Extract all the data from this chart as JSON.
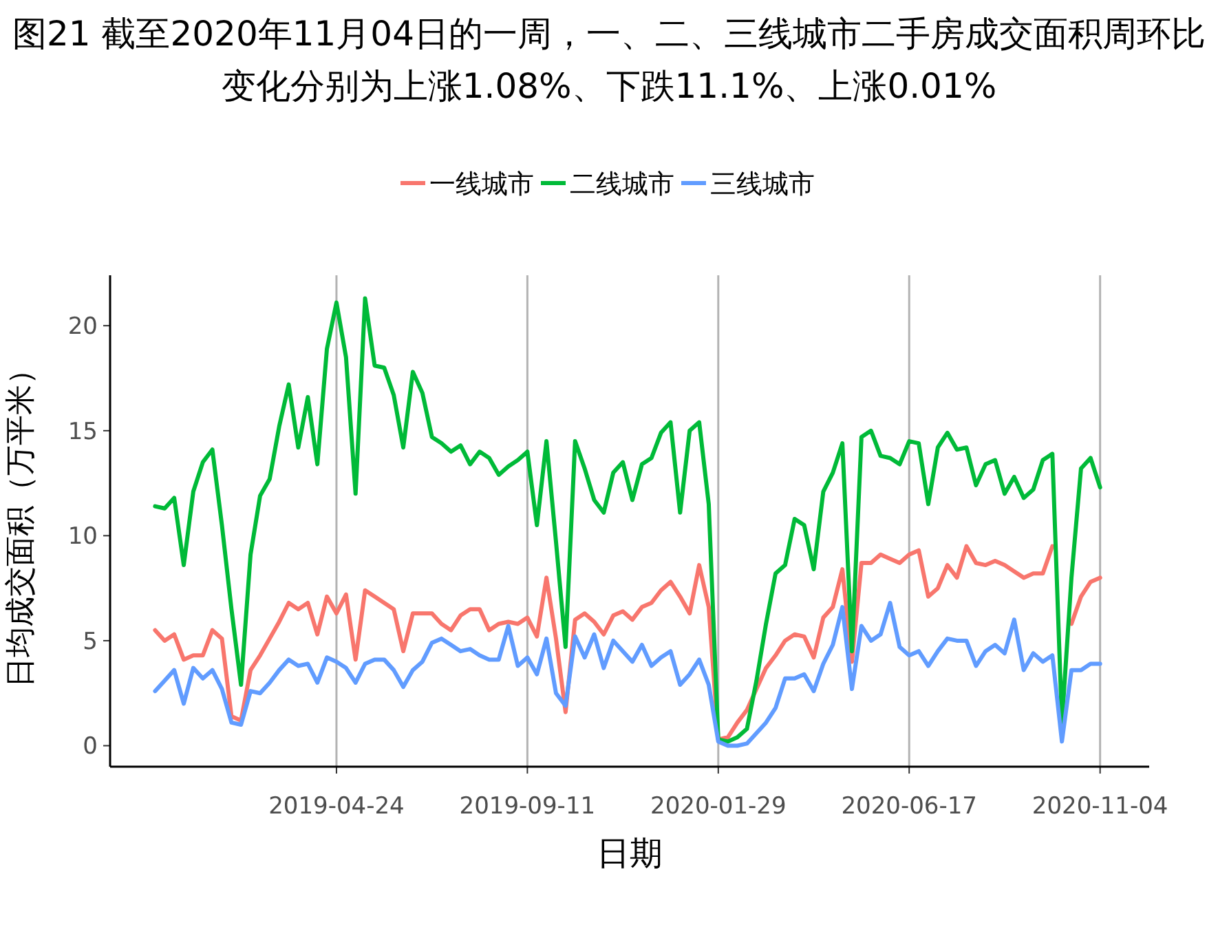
{
  "chart_data": {
    "type": "line",
    "title": "图21  截至2020年11月04日的一周，一、二、三线城市二手房成交面积周环比变化分别为上涨1.08%、下跌11.1%、上涨0.01%",
    "xlabel": "日期",
    "ylabel": "日均成交面积（万平米）",
    "x": [
      "2018-12-12",
      "2018-12-19",
      "2018-12-26",
      "2019-01-02",
      "2019-01-09",
      "2019-01-16",
      "2019-01-23",
      "2019-01-30",
      "2019-02-06",
      "2019-02-13",
      "2019-02-20",
      "2019-02-27",
      "2019-03-06",
      "2019-03-13",
      "2019-03-20",
      "2019-03-27",
      "2019-04-03",
      "2019-04-10",
      "2019-04-17",
      "2019-04-24",
      "2019-05-01",
      "2019-05-08",
      "2019-05-15",
      "2019-05-22",
      "2019-05-29",
      "2019-06-05",
      "2019-06-12",
      "2019-06-19",
      "2019-06-26",
      "2019-07-03",
      "2019-07-10",
      "2019-07-17",
      "2019-07-24",
      "2019-07-31",
      "2019-08-07",
      "2019-08-14",
      "2019-08-21",
      "2019-08-28",
      "2019-09-04",
      "2019-09-11",
      "2019-09-18",
      "2019-09-25",
      "2019-10-02",
      "2019-10-09",
      "2019-10-16",
      "2019-10-23",
      "2019-10-30",
      "2019-11-06",
      "2019-11-13",
      "2019-11-20",
      "2019-11-27",
      "2019-12-04",
      "2019-12-11",
      "2019-12-18",
      "2019-12-25",
      "2020-01-01",
      "2020-01-08",
      "2020-01-15",
      "2020-01-22",
      "2020-01-29",
      "2020-02-05",
      "2020-02-12",
      "2020-02-19",
      "2020-02-26",
      "2020-03-04",
      "2020-03-11",
      "2020-03-18",
      "2020-03-25",
      "2020-04-01",
      "2020-04-08",
      "2020-04-15",
      "2020-04-22",
      "2020-04-29",
      "2020-05-06",
      "2020-05-13",
      "2020-05-20",
      "2020-05-27",
      "2020-06-03",
      "2020-06-10",
      "2020-06-17",
      "2020-06-24",
      "2020-07-01",
      "2020-07-08",
      "2020-07-15",
      "2020-07-22",
      "2020-07-29",
      "2020-08-05",
      "2020-08-12",
      "2020-08-19",
      "2020-08-26",
      "2020-09-02",
      "2020-09-09",
      "2020-09-16",
      "2020-09-23",
      "2020-09-30",
      "2020-10-07",
      "2020-10-14",
      "2020-10-21",
      "2020-10-28",
      "2020-11-04"
    ],
    "series": [
      {
        "name": "一线城市",
        "color": "#f8766d",
        "values": [
          5.5,
          5.0,
          5.3,
          4.1,
          4.3,
          4.3,
          5.5,
          5.1,
          1.4,
          1.2,
          3.6,
          4.3,
          5.1,
          5.9,
          6.8,
          6.5,
          6.8,
          5.3,
          7.1,
          6.3,
          7.2,
          4.1,
          7.4,
          7.1,
          6.8,
          6.5,
          4.5,
          6.3,
          6.3,
          6.3,
          5.8,
          5.5,
          6.2,
          6.5,
          6.5,
          5.5,
          5.8,
          5.9,
          5.8,
          6.1,
          5.2,
          8.0,
          5.1,
          1.6,
          6.0,
          6.3,
          5.9,
          5.3,
          6.2,
          6.4,
          6.0,
          6.6,
          6.8,
          7.4,
          7.8,
          7.1,
          6.3,
          8.6,
          6.6,
          0.3,
          0.4,
          1.1,
          1.7,
          2.7,
          3.7,
          4.3,
          5.0,
          5.3,
          5.2,
          4.2,
          6.1,
          6.6,
          8.4,
          4.0,
          8.7,
          8.7,
          9.1,
          8.9,
          8.7,
          9.1,
          9.3,
          7.1,
          7.5,
          8.6,
          8.0,
          9.5,
          8.7,
          8.6,
          8.8,
          8.6,
          8.3,
          8.0,
          8.2,
          8.2,
          9.5,
          null,
          5.8,
          7.1,
          7.8,
          8.0
        ]
      },
      {
        "name": "二线城市",
        "color": "#00ba38",
        "values": [
          11.4,
          11.3,
          11.8,
          8.6,
          12.1,
          13.5,
          14.1,
          10.5,
          6.5,
          2.9,
          9.1,
          11.9,
          12.7,
          15.2,
          17.2,
          14.2,
          16.6,
          13.4,
          18.9,
          21.1,
          18.5,
          12.0,
          21.3,
          18.1,
          18.0,
          16.7,
          14.2,
          17.8,
          16.8,
          14.7,
          14.4,
          14.0,
          14.3,
          13.4,
          14.0,
          13.7,
          12.9,
          13.3,
          13.6,
          14.0,
          10.5,
          14.5,
          9.7,
          4.7,
          14.5,
          13.2,
          11.7,
          11.1,
          13.0,
          13.5,
          11.7,
          13.4,
          13.7,
          14.9,
          15.4,
          11.1,
          15.0,
          15.4,
          11.5,
          0.3,
          0.2,
          0.4,
          0.8,
          3.1,
          5.8,
          8.2,
          8.6,
          10.8,
          10.5,
          8.4,
          12.1,
          13.0,
          14.4,
          4.5,
          14.7,
          15.0,
          13.8,
          13.7,
          13.4,
          14.5,
          14.4,
          11.5,
          14.2,
          14.9,
          14.1,
          14.2,
          12.4,
          13.4,
          13.6,
          12.0,
          12.8,
          11.8,
          12.2,
          13.6,
          13.9,
          1.1,
          8.0,
          13.2,
          13.7,
          12.3
        ]
      },
      {
        "name": "三线城市",
        "color": "#619cff",
        "values": [
          2.6,
          3.1,
          3.6,
          2.0,
          3.7,
          3.2,
          3.6,
          2.7,
          1.1,
          1.0,
          2.6,
          2.5,
          3.0,
          3.6,
          4.1,
          3.8,
          3.9,
          3.0,
          4.2,
          4.0,
          3.7,
          3.0,
          3.9,
          4.1,
          4.1,
          3.6,
          2.8,
          3.6,
          4.0,
          4.9,
          5.1,
          4.8,
          4.5,
          4.6,
          4.3,
          4.1,
          4.1,
          5.7,
          3.8,
          4.2,
          3.4,
          5.1,
          2.5,
          1.9,
          5.2,
          4.2,
          5.3,
          3.7,
          5.0,
          4.5,
          4.0,
          4.8,
          3.8,
          4.2,
          4.5,
          2.9,
          3.4,
          4.1,
          2.9,
          0.2,
          0.0,
          0.0,
          0.1,
          0.6,
          1.1,
          1.8,
          3.2,
          3.2,
          3.4,
          2.6,
          3.9,
          4.8,
          6.6,
          2.7,
          5.7,
          5.0,
          5.3,
          6.8,
          4.7,
          4.3,
          4.5,
          3.8,
          4.5,
          5.1,
          5.0,
          5.0,
          3.8,
          4.5,
          4.8,
          4.4,
          6.0,
          3.6,
          4.4,
          4.0,
          4.3,
          0.2,
          3.6,
          3.6,
          3.9,
          3.9
        ]
      }
    ],
    "xlim": [
      "2018-11-09",
      "2020-12-10"
    ],
    "ylim": [
      -1,
      22.4
    ],
    "xticks": [
      "2019-04-24",
      "2019-09-11",
      "2020-01-29",
      "2020-06-17",
      "2020-11-04"
    ],
    "yticks": [
      0,
      5,
      10,
      15,
      20
    ],
    "grid": "x",
    "legend": "top"
  }
}
